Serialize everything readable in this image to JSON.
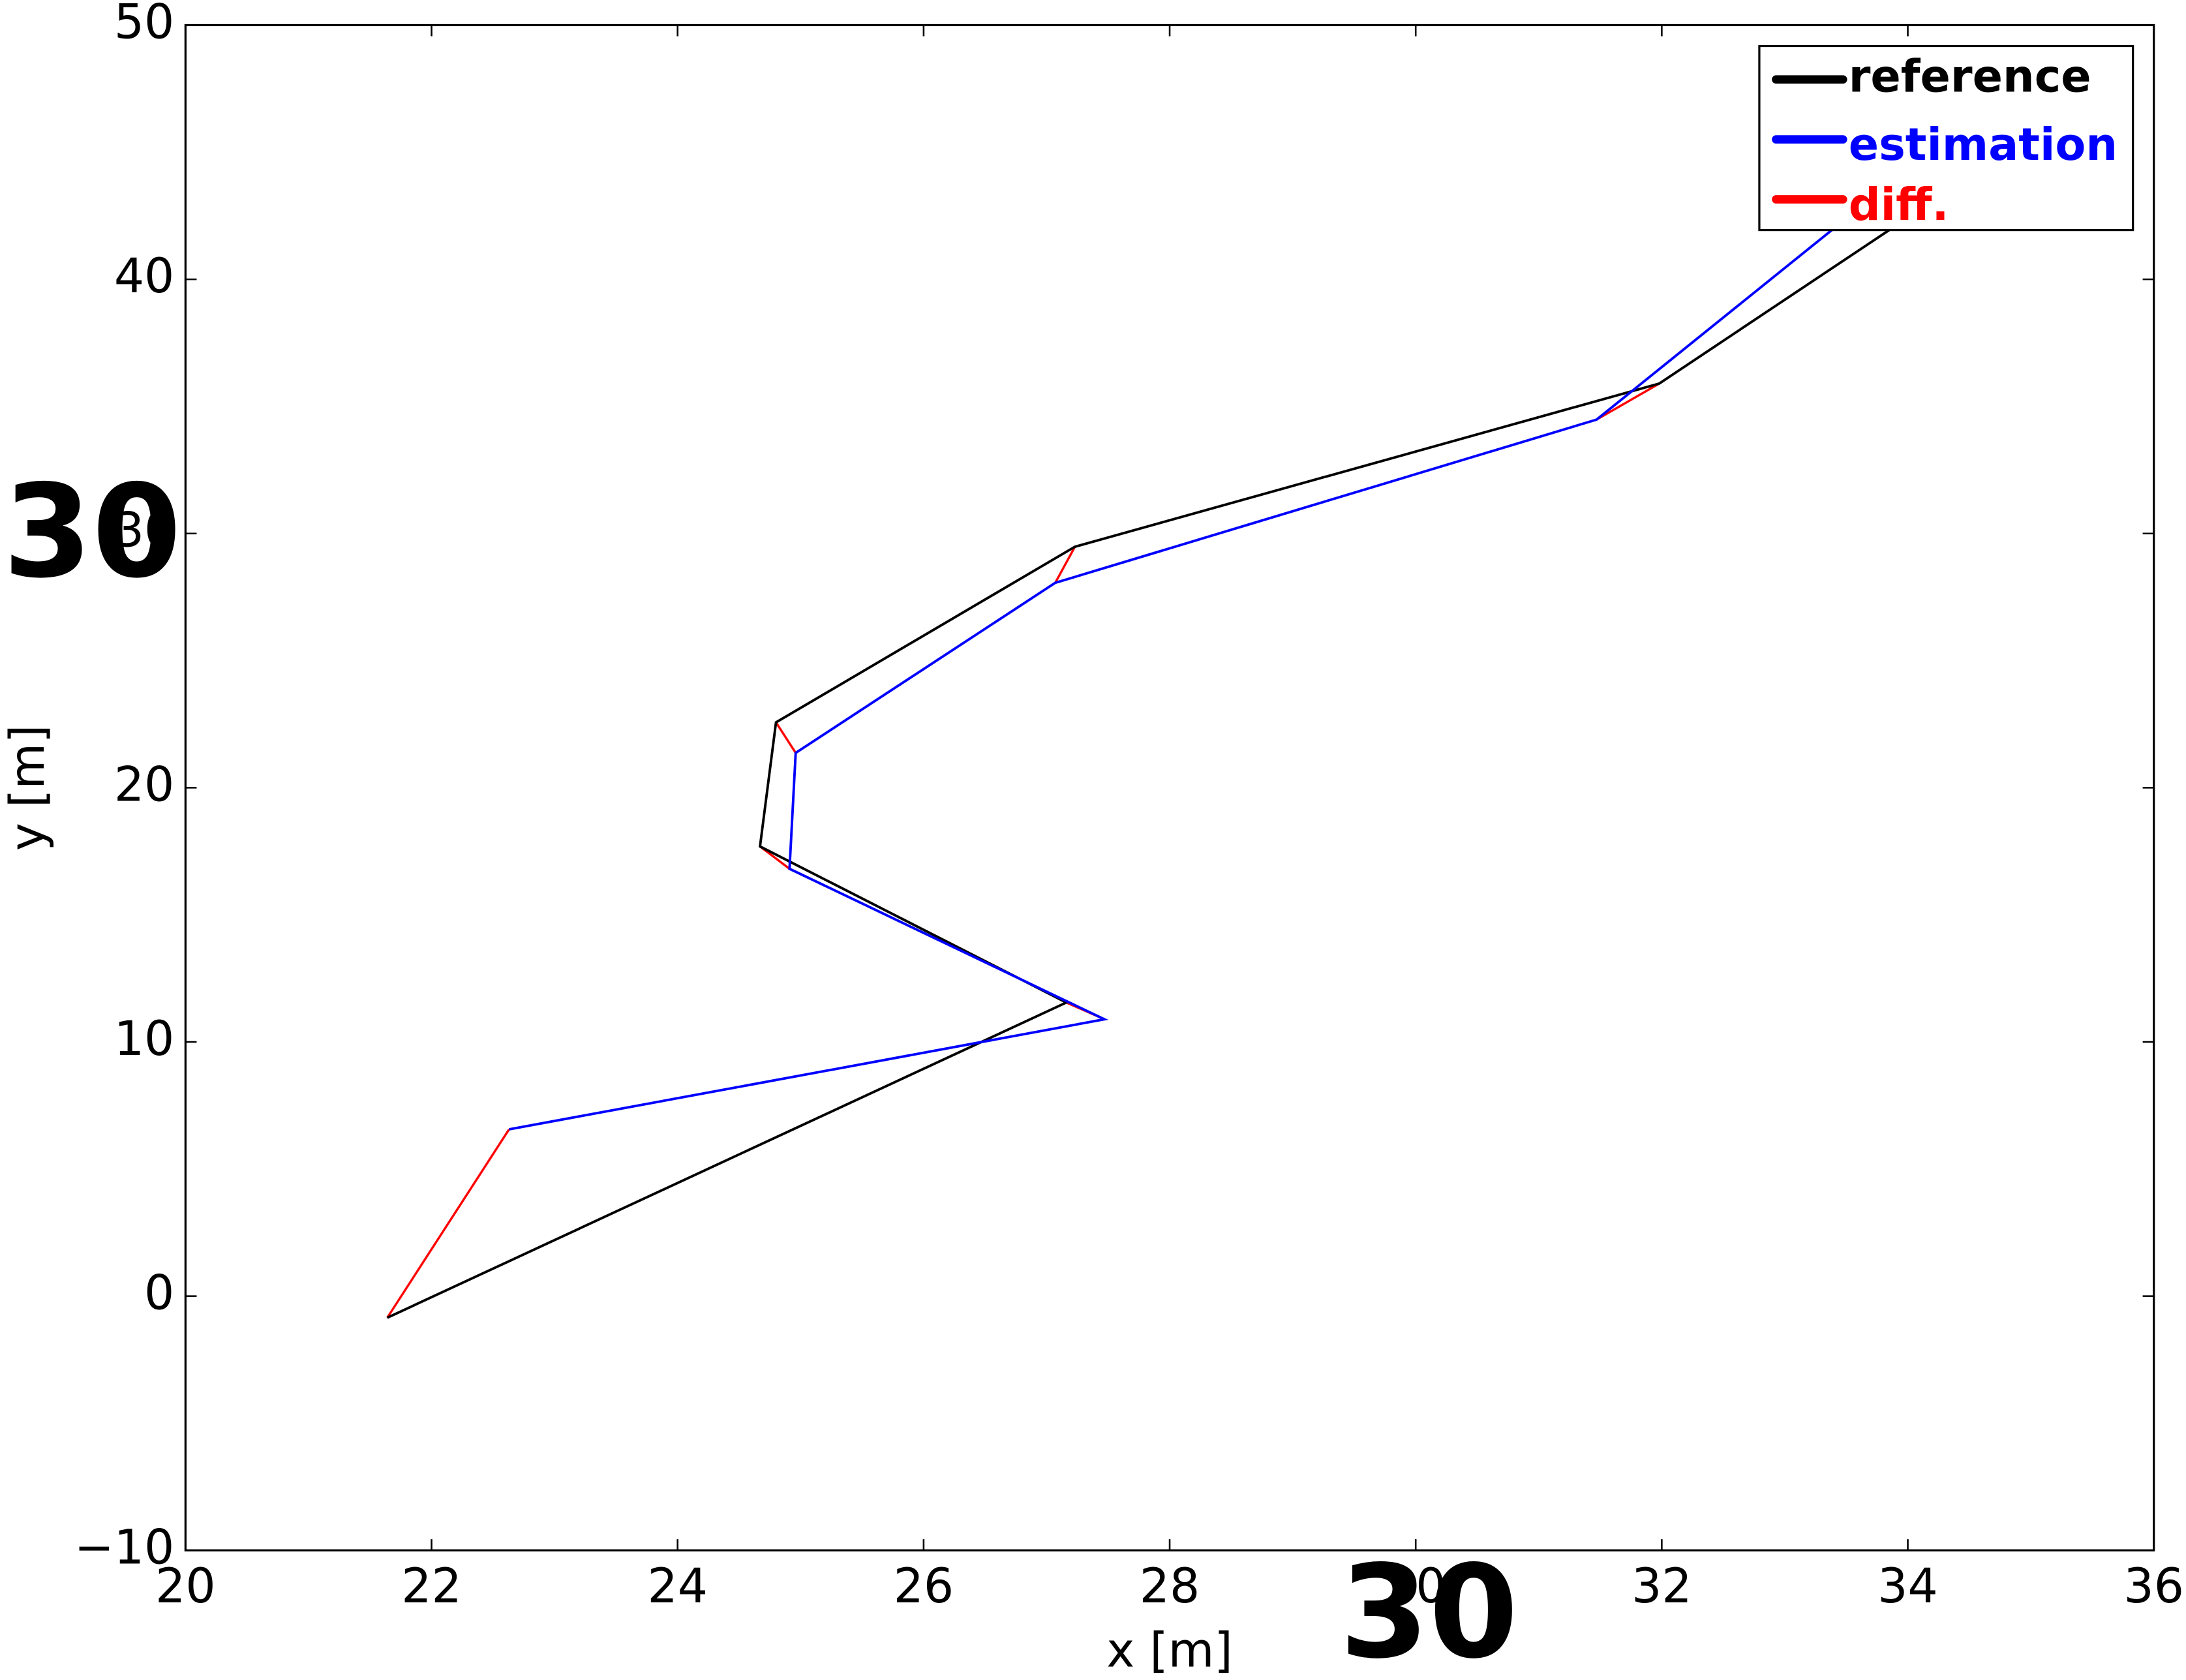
{
  "chart_data": {
    "type": "line",
    "xlabel": "x [m]",
    "ylabel": "y [m]",
    "xlim": [
      20,
      36
    ],
    "ylim": [
      -10,
      50
    ],
    "xticks": [
      20,
      22,
      24,
      26,
      28,
      30,
      32,
      34,
      36
    ],
    "yticks": [
      {
        "value": -10,
        "label": "−10"
      },
      0,
      10,
      20,
      30,
      40,
      50
    ],
    "legend": "upper right",
    "annotations": [
      "30",
      "30"
    ],
    "series": [
      {
        "name": "reference",
        "color": "#000000",
        "x": [
          21.64,
          27.16,
          24.67,
          24.8,
          27.23,
          31.98,
          33.85
        ],
        "y": [
          -0.85,
          11.55,
          17.69,
          22.57,
          29.48,
          35.9,
          41.94
        ]
      },
      {
        "name": "estimation",
        "color": "#0000ff",
        "x": [
          22.63,
          27.47,
          24.91,
          24.96,
          27.07,
          31.47,
          33.45
        ],
        "y": [
          6.56,
          10.89,
          16.81,
          21.37,
          28.06,
          34.48,
          42.2
        ]
      }
    ],
    "diff": {
      "name": "diff.",
      "color": "#ff0000"
    }
  }
}
